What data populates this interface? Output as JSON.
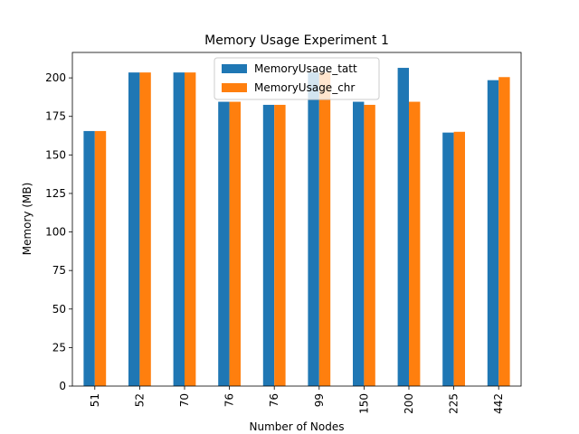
{
  "chart_data": {
    "type": "bar",
    "title": "Memory Usage Experiment 1",
    "xlabel": "Number of Nodes",
    "ylabel": "Memory (MB)",
    "categories": [
      "51",
      "52",
      "70",
      "76",
      "76",
      "99",
      "150",
      "200",
      "225",
      "442"
    ],
    "series": [
      {
        "name": "MemoryUsage_tatt",
        "color": "#1f77b4",
        "values": [
          165.5,
          203.5,
          203.5,
          184.5,
          182.5,
          203.5,
          184.5,
          206.5,
          164.5,
          198.5
        ]
      },
      {
        "name": "MemoryUsage_chr",
        "color": "#ff7f0e",
        "values": [
          165.5,
          203.5,
          203.5,
          184.5,
          182.5,
          203.5,
          182.5,
          184.5,
          165.0,
          200.5
        ]
      }
    ],
    "ylim": [
      0,
      216.5
    ],
    "yticks": [
      0,
      25,
      50,
      75,
      100,
      125,
      150,
      175,
      200
    ],
    "grid": false,
    "legend_position": "top-center"
  }
}
